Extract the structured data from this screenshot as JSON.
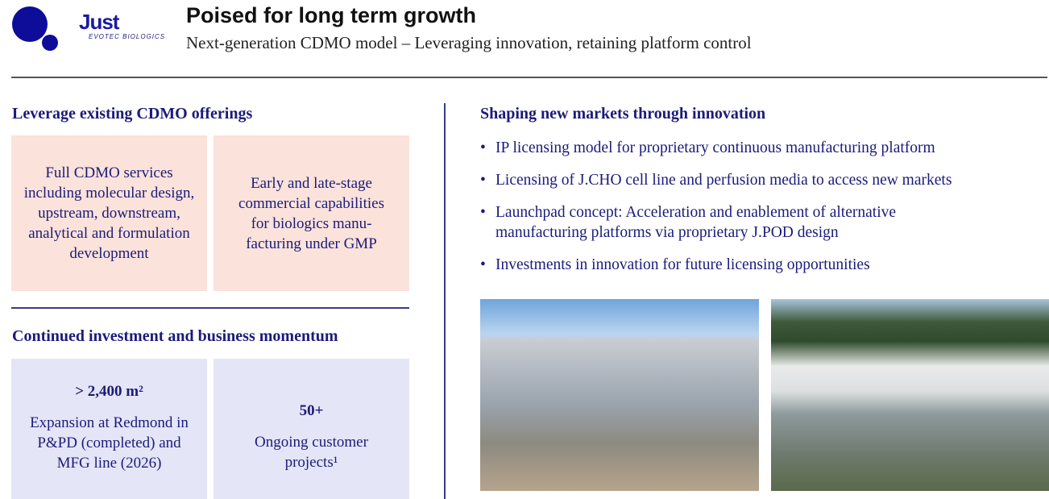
{
  "logo": {
    "name": "Just",
    "sub": "EVOTEC BIOLOGICS"
  },
  "header": {
    "title": "Poised for long term growth",
    "subtitle": "Next-generation CDMO model – Leveraging innovation, retaining platform control"
  },
  "left": {
    "section1": {
      "heading": "Leverage existing CDMO offerings",
      "boxes": [
        "Full CDMO services including molecular design, upstream, downstream, analytical and formulation development",
        "Early and late-stage commercial capabilities for biologics manu-facturing under GMP"
      ]
    },
    "section2": {
      "heading": "Continued investment and business momentum",
      "boxes": [
        {
          "value": "> 2,400 m²",
          "text": "Expansion at Redmond in P&PD (completed) and MFG line (2026)"
        },
        {
          "value": "50+",
          "text": "Ongoing customer projects¹"
        }
      ]
    }
  },
  "right": {
    "heading": "Shaping new markets through innovation",
    "bullets": [
      "IP licensing model for proprietary continuous manufacturing platform",
      "Licensing of J.CHO cell line and perfusion media to access new markets",
      "Launchpad concept: Acceleration and enablement of alternative manufacturing platforms via proprietary J.POD design",
      "Investments in innovation for future licensing opportunities"
    ]
  }
}
